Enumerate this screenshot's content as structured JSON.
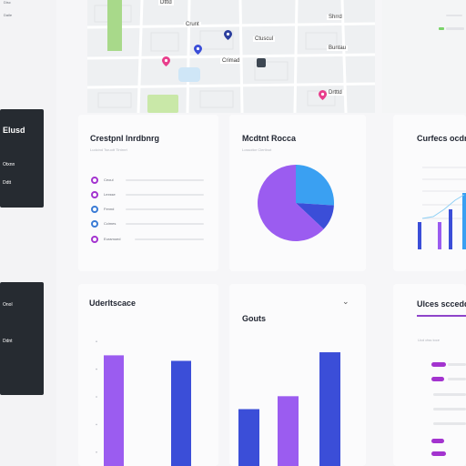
{
  "left_rail": {
    "top_labels": [
      "Disc",
      "Daile"
    ]
  },
  "map": {
    "street_labels": [
      "Dtttd",
      "Crunt",
      "Shrrd",
      "Ctuscul",
      "Buntau",
      "Crimad",
      "Drtttd"
    ],
    "pin_colors": [
      "#e83e8c",
      "#3b4ed8",
      "#2c3f9e",
      "#e83e8c"
    ],
    "park_colors": [
      "#a8d98a",
      "#c9e8a8"
    ],
    "water_color": "#cfe6f7"
  },
  "sidebar_panels": [
    {
      "title": "Elusd",
      "items": [
        "Otxnn",
        "Ddtt"
      ]
    },
    {
      "title": "",
      "items": [
        "Onol",
        "Ddnt"
      ]
    }
  ],
  "list_card": {
    "title": "Crestpnl lnrdbnrg",
    "subtitle": "Ludcind  Tsruott  Tlntrnrt",
    "rows": [
      {
        "label": "Ceoul",
        "color": "#a333cf"
      },
      {
        "label": "Lexsse",
        "color": "#a333cf"
      },
      {
        "label": "Fennd",
        "color": "#3a7bd5"
      },
      {
        "label": "Ccimes",
        "color": "#3a7bd5"
      },
      {
        "label": "Euramoed",
        "color": "#a333cf"
      }
    ]
  },
  "pie_card": {
    "title": "Mcdtnt Rocca",
    "subtitle": "Lossoitor  Clertinot",
    "colors": [
      "#3aa0f2",
      "#3b4ed8",
      "#9b5cf0"
    ]
  },
  "chart_data": [
    {
      "type": "pie",
      "values": [
        26,
        11,
        63
      ],
      "colors": [
        "#3aa0f2",
        "#3b4ed8",
        "#9b5cf0"
      ]
    },
    {
      "type": "bar",
      "categories": [
        "",
        ""
      ],
      "values": [
        40,
        38
      ],
      "colors": [
        "#9b5cf0",
        "#3b4ed8"
      ],
      "ylim": [
        0,
        50
      ]
    },
    {
      "type": "bar",
      "categories": [
        "",
        "",
        ""
      ],
      "values": [
        22,
        27,
        44
      ],
      "colors": [
        "#3b4ed8",
        "#9b5cf0",
        "#3b4ed8"
      ],
      "ylim": [
        0,
        50
      ]
    }
  ],
  "right_card": {
    "title": "Curfecs ocdnitin",
    "legend": [
      "Elss",
      "Elal"
    ]
  },
  "distribution_card": {
    "title": "Uderltscace"
  },
  "gouts_card": {
    "title": "Gouts",
    "dropdown": "⌄"
  },
  "ulces_card": {
    "title": "Ulces sccedd",
    "subtitle": "Ucd   ctss   toce"
  }
}
